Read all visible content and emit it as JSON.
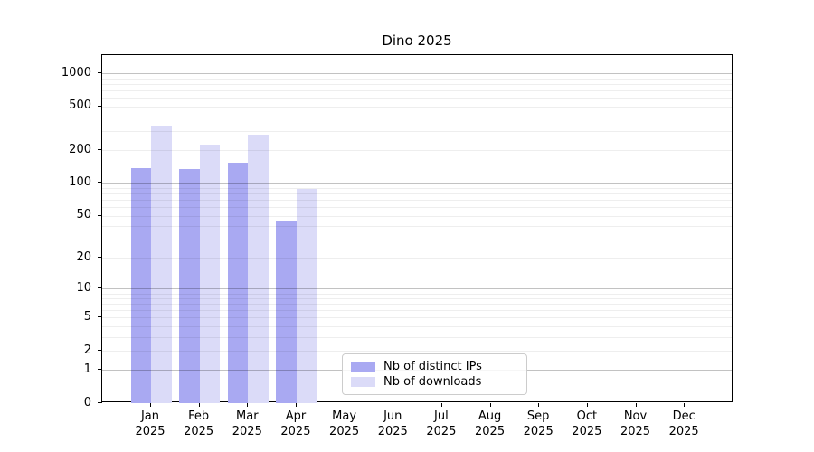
{
  "chart_data": {
    "type": "bar",
    "title": "Dino 2025",
    "months": [
      "Jan",
      "Feb",
      "Mar",
      "Apr",
      "May",
      "Jun",
      "Jul",
      "Aug",
      "Sep",
      "Oct",
      "Nov",
      "Dec"
    ],
    "year": "2025",
    "series": [
      {
        "name": "Nb of distinct IPs",
        "color": "#a9a9f2",
        "values": [
          137,
          134,
          153,
          45,
          0,
          0,
          0,
          0,
          0,
          0,
          0,
          0
        ]
      },
      {
        "name": "Nb of downloads",
        "color": "#dbdbf8",
        "values": [
          333,
          224,
          279,
          88,
          0,
          0,
          0,
          0,
          0,
          0,
          0,
          0
        ]
      }
    ],
    "y_axis": {
      "scale": "log1p",
      "ticks": [
        0,
        1,
        2,
        5,
        10,
        20,
        50,
        100,
        200,
        500,
        1000
      ],
      "range": [
        0,
        1475
      ],
      "grid": "horizontal"
    },
    "legend_position": "bottom-center",
    "colors": {
      "axis": "#000000",
      "major_grid": "#c2c2c2",
      "minor_grid": "#ececec",
      "legend_border": "#cccccc",
      "background": "#ffffff"
    }
  }
}
